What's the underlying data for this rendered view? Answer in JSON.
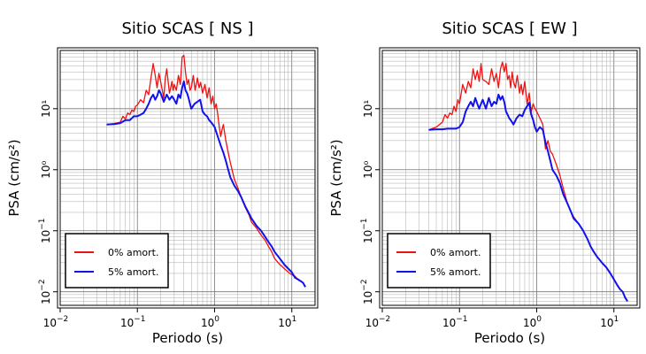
{
  "chart_data": [
    {
      "type": "line",
      "title": "Sitio SCAS [ NS ]",
      "xlabel": "Periodo (s)",
      "ylabel": "PSA (cm/s²)",
      "xscale": "log",
      "yscale": "log",
      "xlim": [
        0.01,
        20
      ],
      "ylim": [
        0.006,
        90
      ],
      "grid": true,
      "legend_position": "bottom-left",
      "xticks": [
        {
          "base": "10",
          "exp": "−2"
        },
        {
          "base": "10",
          "exp": "−1"
        },
        {
          "base": "10",
          "exp": "0"
        },
        {
          "base": "10",
          "exp": "1"
        }
      ],
      "yticks": [
        {
          "base": "10",
          "exp": "−2"
        },
        {
          "base": "10",
          "exp": "−1"
        },
        {
          "text": "10⁰"
        },
        {
          "text": "10¹"
        }
      ],
      "series": [
        {
          "name": "0% amort.",
          "color": "#ee1111",
          "x": [
            0.04,
            0.05,
            0.06,
            0.065,
            0.07,
            0.075,
            0.08,
            0.085,
            0.09,
            0.095,
            0.1,
            0.11,
            0.12,
            0.13,
            0.14,
            0.15,
            0.16,
            0.17,
            0.18,
            0.19,
            0.2,
            0.21,
            0.22,
            0.23,
            0.24,
            0.25,
            0.26,
            0.27,
            0.28,
            0.29,
            0.3,
            0.32,
            0.34,
            0.36,
            0.38,
            0.4,
            0.42,
            0.44,
            0.46,
            0.48,
            0.5,
            0.53,
            0.56,
            0.6,
            0.63,
            0.66,
            0.7,
            0.75,
            0.8,
            0.85,
            0.9,
            0.95,
            1.0,
            1.05,
            1.1,
            1.15,
            1.2,
            1.25,
            1.3,
            1.4,
            1.5,
            1.6,
            1.7,
            1.8,
            2.0,
            2.2,
            2.5,
            2.8,
            3.0,
            3.5,
            4.0,
            4.5,
            5.0,
            5.5,
            6.0,
            7.0,
            8.0,
            9.0,
            10.0,
            11.0,
            12.0,
            13.0,
            14.0,
            15.0
          ],
          "y": [
            5.5,
            5.7,
            6.0,
            7.5,
            6.8,
            8.5,
            8.0,
            9.5,
            9.0,
            11.0,
            11.5,
            14.0,
            12.5,
            20.0,
            17.0,
            32.0,
            55.0,
            35.0,
            22.0,
            38.0,
            28.0,
            20.0,
            15.0,
            32.0,
            45.0,
            28.0,
            18.0,
            22.0,
            28.0,
            20.0,
            25.0,
            20.0,
            35.0,
            25.0,
            70.0,
            75.0,
            40.0,
            25.0,
            30.0,
            20.0,
            22.0,
            35.0,
            20.0,
            32.0,
            22.0,
            27.0,
            18.0,
            25.0,
            15.0,
            22.0,
            12.0,
            16.0,
            10.0,
            12.0,
            8.0,
            5.0,
            3.5,
            4.5,
            5.5,
            3.0,
            1.9,
            1.3,
            0.95,
            0.7,
            0.5,
            0.36,
            0.24,
            0.18,
            0.14,
            0.11,
            0.085,
            0.07,
            0.055,
            0.045,
            0.035,
            0.028,
            0.024,
            0.021,
            0.019,
            0.018,
            0.016,
            0.015,
            0.014,
            0.012
          ]
        },
        {
          "name": "5% amort.",
          "color": "#1111ee",
          "x": [
            0.04,
            0.05,
            0.06,
            0.07,
            0.08,
            0.09,
            0.1,
            0.11,
            0.12,
            0.13,
            0.14,
            0.15,
            0.16,
            0.17,
            0.18,
            0.19,
            0.2,
            0.22,
            0.24,
            0.26,
            0.28,
            0.3,
            0.32,
            0.34,
            0.36,
            0.38,
            0.4,
            0.42,
            0.44,
            0.46,
            0.48,
            0.5,
            0.55,
            0.6,
            0.65,
            0.7,
            0.75,
            0.8,
            0.85,
            0.9,
            0.95,
            1.0,
            1.1,
            1.2,
            1.3,
            1.4,
            1.5,
            1.6,
            1.8,
            2.0,
            2.2,
            2.5,
            2.8,
            3.0,
            3.5,
            4.0,
            4.5,
            5.0,
            5.5,
            6.0,
            7.0,
            8.0,
            9.0,
            10.0,
            11.0,
            12.0,
            13.0,
            14.0,
            15.0
          ],
          "y": [
            5.5,
            5.6,
            5.8,
            6.5,
            6.5,
            7.5,
            7.5,
            8.0,
            8.5,
            10.0,
            12.0,
            15.0,
            17.0,
            14.0,
            16.0,
            20.0,
            18.0,
            13.0,
            17.0,
            14.0,
            16.0,
            14.0,
            12.0,
            17.0,
            15.0,
            22.0,
            28.0,
            20.0,
            18.0,
            15.0,
            12.0,
            10.0,
            12.0,
            13.0,
            14.0,
            9.0,
            8.0,
            7.5,
            6.5,
            6.0,
            5.5,
            5.0,
            3.5,
            2.5,
            1.9,
            1.4,
            1.0,
            0.75,
            0.55,
            0.45,
            0.36,
            0.25,
            0.19,
            0.16,
            0.12,
            0.1,
            0.08,
            0.065,
            0.055,
            0.045,
            0.035,
            0.028,
            0.024,
            0.021,
            0.017,
            0.016,
            0.015,
            0.014,
            0.012
          ]
        }
      ]
    },
    {
      "type": "line",
      "title": "Sitio SCAS [ EW ]",
      "xlabel": "Periodo (s)",
      "ylabel": "PSA (cm/s²)",
      "xscale": "log",
      "yscale": "log",
      "xlim": [
        0.01,
        20
      ],
      "ylim": [
        0.006,
        90
      ],
      "grid": true,
      "legend_position": "bottom-left",
      "xticks": [
        {
          "base": "10",
          "exp": "−2"
        },
        {
          "base": "10",
          "exp": "−1"
        },
        {
          "base": "10",
          "exp": "0"
        },
        {
          "base": "10",
          "exp": "1"
        }
      ],
      "yticks": [
        {
          "base": "10",
          "exp": "−2"
        },
        {
          "base": "10",
          "exp": "−1"
        },
        {
          "text": "10⁰"
        },
        {
          "text": "10¹"
        }
      ],
      "series": [
        {
          "name": "0% amort.",
          "color": "#ee1111",
          "x": [
            0.04,
            0.05,
            0.06,
            0.065,
            0.07,
            0.075,
            0.08,
            0.085,
            0.09,
            0.095,
            0.1,
            0.11,
            0.12,
            0.13,
            0.14,
            0.15,
            0.16,
            0.17,
            0.18,
            0.19,
            0.2,
            0.22,
            0.24,
            0.26,
            0.28,
            0.3,
            0.32,
            0.34,
            0.36,
            0.38,
            0.4,
            0.42,
            0.44,
            0.46,
            0.48,
            0.5,
            0.53,
            0.56,
            0.6,
            0.63,
            0.66,
            0.7,
            0.75,
            0.8,
            0.85,
            0.9,
            0.95,
            1.0,
            1.1,
            1.2,
            1.3,
            1.4,
            1.5,
            1.6,
            1.8,
            2.0,
            2.2,
            2.5,
            2.8,
            3.0,
            3.5,
            4.0,
            4.5,
            5.0,
            5.5,
            6.0,
            7.0,
            8.0,
            9.0,
            10.0,
            11.0,
            12.0,
            13.0,
            14.0,
            15.0
          ],
          "y": [
            4.5,
            5.0,
            6.0,
            8.0,
            7.0,
            8.5,
            8.0,
            11.0,
            9.0,
            14.0,
            12.0,
            25.0,
            18.0,
            28.0,
            22.0,
            45.0,
            30.0,
            42.0,
            28.0,
            55.0,
            30.0,
            28.0,
            25.0,
            45.0,
            28.0,
            38.0,
            22.0,
            45.0,
            58.0,
            40.0,
            55.0,
            30.0,
            35.0,
            22.0,
            40.0,
            28.0,
            22.0,
            35.0,
            18.0,
            25.0,
            17.0,
            28.0,
            12.0,
            18.0,
            9.0,
            12.0,
            10.0,
            9.0,
            7.0,
            5.5,
            2.2,
            3.0,
            2.0,
            1.8,
            1.2,
            0.8,
            0.5,
            0.28,
            0.2,
            0.17,
            0.13,
            0.1,
            0.075,
            0.055,
            0.045,
            0.038,
            0.03,
            0.025,
            0.02,
            0.016,
            0.013,
            0.011,
            0.01,
            0.008,
            0.007
          ]
        },
        {
          "name": "5% amort.",
          "color": "#1111ee",
          "x": [
            0.04,
            0.05,
            0.06,
            0.07,
            0.08,
            0.09,
            0.1,
            0.11,
            0.12,
            0.13,
            0.14,
            0.15,
            0.16,
            0.17,
            0.18,
            0.19,
            0.2,
            0.22,
            0.24,
            0.26,
            0.28,
            0.3,
            0.32,
            0.34,
            0.36,
            0.38,
            0.4,
            0.42,
            0.44,
            0.46,
            0.48,
            0.5,
            0.55,
            0.6,
            0.65,
            0.7,
            0.75,
            0.8,
            0.85,
            0.9,
            0.95,
            1.0,
            1.1,
            1.2,
            1.3,
            1.4,
            1.5,
            1.6,
            1.8,
            2.0,
            2.2,
            2.5,
            2.8,
            3.0,
            3.5,
            4.0,
            4.5,
            5.0,
            5.5,
            6.0,
            7.0,
            8.0,
            9.0,
            10.0,
            11.0,
            12.0,
            13.0,
            14.0,
            15.0
          ],
          "y": [
            4.5,
            4.6,
            4.6,
            4.7,
            4.7,
            4.7,
            5.0,
            6.0,
            9.0,
            11.0,
            13.0,
            11.0,
            15.0,
            12.0,
            10.0,
            12.0,
            14.0,
            10.0,
            15.0,
            11.0,
            13.0,
            12.0,
            17.0,
            14.0,
            16.0,
            13.0,
            9.0,
            8.0,
            7.0,
            6.5,
            6.0,
            5.5,
            7.0,
            8.0,
            7.5,
            9.5,
            11.0,
            12.5,
            8.0,
            6.5,
            5.0,
            4.2,
            5.0,
            4.5,
            2.8,
            2.0,
            1.4,
            1.0,
            0.8,
            0.6,
            0.4,
            0.28,
            0.2,
            0.16,
            0.13,
            0.1,
            0.075,
            0.055,
            0.045,
            0.038,
            0.03,
            0.025,
            0.02,
            0.016,
            0.013,
            0.011,
            0.01,
            0.008,
            0.007
          ]
        }
      ]
    }
  ]
}
